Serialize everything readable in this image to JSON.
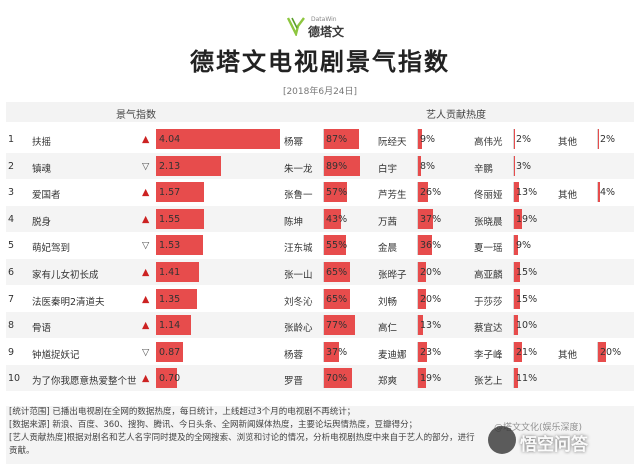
{
  "logo": {
    "name": "德塔文",
    "sub": "DataWin"
  },
  "title": "德塔文电视剧景气指数",
  "date": "[2018年6月24日]",
  "headers": {
    "index": "景气指数",
    "artist": "艺人贡献热度"
  },
  "colors": {
    "bar": "#e74c4c",
    "up": "#cc2222",
    "down": "#555555"
  },
  "chart_data": {
    "type": "table",
    "index_max": 4.04,
    "rows": [
      {
        "rank": "1",
        "drama": "扶摇",
        "trend": "▲",
        "dir": "up",
        "index": 4.04,
        "index_label": "4.04",
        "artists": [
          {
            "name": "杨幂",
            "pct": 87,
            "label": "87%"
          },
          {
            "name": "阮经天",
            "pct": 9,
            "label": "9%"
          },
          {
            "name": "高伟光",
            "pct": 2,
            "label": "2%"
          },
          {
            "name": "其他",
            "pct": 2,
            "label": "2%"
          }
        ]
      },
      {
        "rank": "2",
        "drama": "镇魂",
        "trend": "▽",
        "dir": "down",
        "index": 2.13,
        "index_label": "2.13",
        "artists": [
          {
            "name": "朱一龙",
            "pct": 89,
            "label": "89%"
          },
          {
            "name": "白宇",
            "pct": 8,
            "label": "8%"
          },
          {
            "name": "辛鹏",
            "pct": 3,
            "label": "3%"
          }
        ]
      },
      {
        "rank": "3",
        "drama": "爱国者",
        "trend": "▲",
        "dir": "up",
        "index": 1.57,
        "index_label": "1.57",
        "artists": [
          {
            "name": "张鲁一",
            "pct": 57,
            "label": "57%"
          },
          {
            "name": "芦芳生",
            "pct": 26,
            "label": "26%"
          },
          {
            "name": "佟丽娅",
            "pct": 13,
            "label": "13%"
          },
          {
            "name": "其他",
            "pct": 4,
            "label": "4%"
          }
        ]
      },
      {
        "rank": "4",
        "drama": "脱身",
        "trend": "▲",
        "dir": "up",
        "index": 1.55,
        "index_label": "1.55",
        "artists": [
          {
            "name": "陈坤",
            "pct": 43,
            "label": "43%"
          },
          {
            "name": "万茜",
            "pct": 37,
            "label": "37%"
          },
          {
            "name": "张晓晨",
            "pct": 19,
            "label": "19%"
          }
        ]
      },
      {
        "rank": "5",
        "drama": "萌妃驾到",
        "trend": "▽",
        "dir": "down",
        "index": 1.53,
        "index_label": "1.53",
        "artists": [
          {
            "name": "汪东城",
            "pct": 55,
            "label": "55%"
          },
          {
            "name": "金晨",
            "pct": 36,
            "label": "36%"
          },
          {
            "name": "夏一瑶",
            "pct": 9,
            "label": "9%"
          }
        ]
      },
      {
        "rank": "6",
        "drama": "家有儿女初长成",
        "trend": "▲",
        "dir": "up",
        "index": 1.41,
        "index_label": "1.41",
        "artists": [
          {
            "name": "张一山",
            "pct": 65,
            "label": "65%"
          },
          {
            "name": "张晔子",
            "pct": 20,
            "label": "20%"
          },
          {
            "name": "高亚麟",
            "pct": 15,
            "label": "15%"
          }
        ]
      },
      {
        "rank": "7",
        "drama": "法医秦明2清道夫",
        "trend": "▲",
        "dir": "up",
        "index": 1.35,
        "index_label": "1.35",
        "artists": [
          {
            "name": "刘冬沁",
            "pct": 65,
            "label": "65%"
          },
          {
            "name": "刘畅",
            "pct": 20,
            "label": "20%"
          },
          {
            "name": "于莎莎",
            "pct": 15,
            "label": "15%"
          }
        ]
      },
      {
        "rank": "8",
        "drama": "骨语",
        "trend": "▲",
        "dir": "up",
        "index": 1.14,
        "index_label": "1.14",
        "artists": [
          {
            "name": "张龄心",
            "pct": 77,
            "label": "77%"
          },
          {
            "name": "高仁",
            "pct": 13,
            "label": "13%"
          },
          {
            "name": "蔡宜达",
            "pct": 10,
            "label": "10%"
          }
        ]
      },
      {
        "rank": "9",
        "drama": "钟馗捉妖记",
        "trend": "▽",
        "dir": "down",
        "index": 0.87,
        "index_label": "0.87",
        "artists": [
          {
            "name": "杨蓉",
            "pct": 37,
            "label": "37%"
          },
          {
            "name": "麦迪娜",
            "pct": 23,
            "label": "23%"
          },
          {
            "name": "李子峰",
            "pct": 21,
            "label": "21%"
          },
          {
            "name": "其他",
            "pct": 20,
            "label": "20%"
          }
        ]
      },
      {
        "rank": "10",
        "drama": "为了你我愿意热爱整个世",
        "trend": "▲",
        "dir": "up",
        "index": 0.7,
        "index_label": "0.70",
        "artists": [
          {
            "name": "罗晋",
            "pct": 70,
            "label": "70%"
          },
          {
            "name": "郑爽",
            "pct": 19,
            "label": "19%"
          },
          {
            "name": "张艺上",
            "pct": 11,
            "label": "11%"
          }
        ]
      }
    ]
  },
  "notes": [
    "[统计范围] 已播出电视剧在全网的数据热度，每日统计，上线超过3个月的电视剧不再统计；",
    "[数据来源] 新浪、百度、360、搜狗、腾讯、今日头条、全网新闻媒体热度，主要论坛舆情热度，豆瓣得分；",
    "[艺人贡献热度]根据对剧名和艺人名字同时提及的全网搜索、浏览和讨论的情况，分析电视剧热度中来自于艺人的部分，进行",
    "贡献。"
  ],
  "watermark": {
    "text": "悟空问答",
    "small": "@塔文文化(娱乐深度)"
  }
}
